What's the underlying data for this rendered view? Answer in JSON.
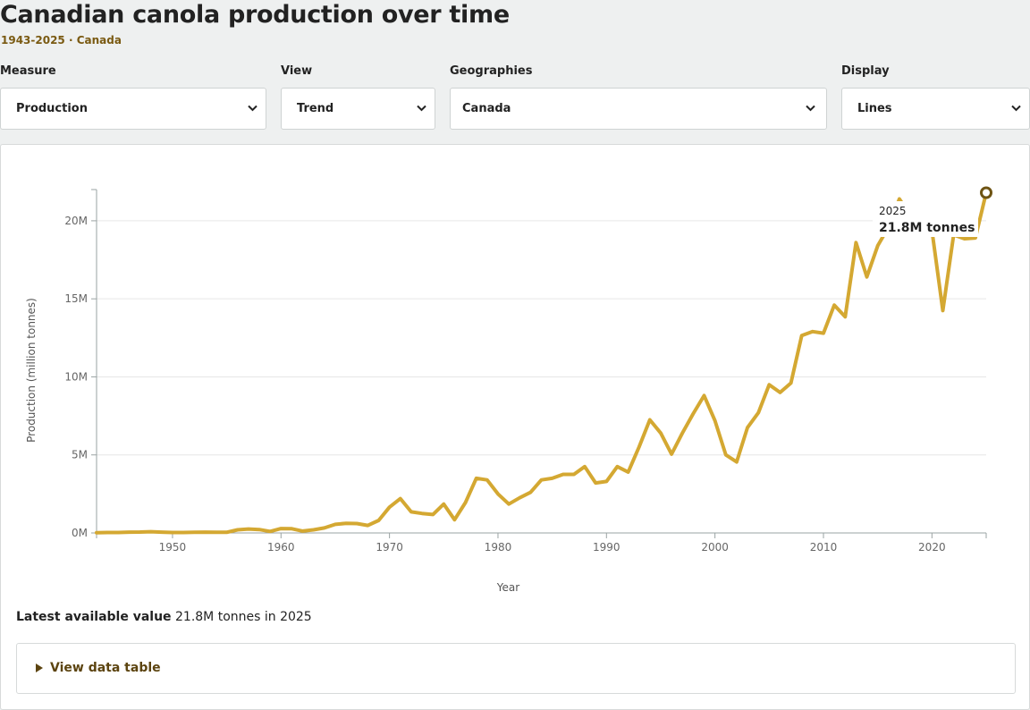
{
  "header": {
    "title": "Canadian canola production over time",
    "subtitle": "1943-2025 · Canada"
  },
  "controls": {
    "measure": {
      "label": "Measure",
      "value": "Production"
    },
    "view": {
      "label": "View",
      "value": "Trend"
    },
    "geographies": {
      "label": "Geographies",
      "value": "Canada"
    },
    "display": {
      "label": "Display",
      "value": "Lines"
    }
  },
  "icons": {
    "select": "chevron-down-icon",
    "details": "triangle-right-icon"
  },
  "colors": {
    "line": "#d4a832",
    "marker": "#6e5413",
    "accent_text": "#7a5a12"
  },
  "tooltip": {
    "year": "2025",
    "value": "21.8M tonnes"
  },
  "latest": {
    "label": "Latest available value",
    "text": "21.8M tonnes in 2025"
  },
  "details": {
    "label": "View data table"
  },
  "chart_data": {
    "type": "line",
    "xlabel": "Year",
    "ylabel": "Production (million tonnes)",
    "xlim": [
      1943,
      2025
    ],
    "ylim": [
      0,
      22
    ],
    "x_ticks": [
      1950,
      1960,
      1970,
      1980,
      1990,
      2000,
      2010,
      2020
    ],
    "y_ticks": [
      0,
      5,
      10,
      15,
      20
    ],
    "y_tick_labels": [
      "0M",
      "5M",
      "10M",
      "15M",
      "20M"
    ],
    "grid": true,
    "series": [
      {
        "x": [
          1943,
          1944,
          1945,
          1946,
          1947,
          1948,
          1949,
          1950,
          1951,
          1952,
          1953,
          1954,
          1955,
          1956,
          1957,
          1958,
          1959,
          1960,
          1961,
          1962,
          1963,
          1964,
          1965,
          1966,
          1967,
          1968,
          1969,
          1970,
          1971,
          1972,
          1973,
          1974,
          1975,
          1976,
          1977,
          1978,
          1979,
          1980,
          1981,
          1982,
          1983,
          1984,
          1985,
          1986,
          1987,
          1988,
          1989,
          1990,
          1991,
          1992,
          1993,
          1994,
          1995,
          1996,
          1997,
          1998,
          1999,
          2000,
          2001,
          2002,
          2003,
          2004,
          2005,
          2006,
          2007,
          2008,
          2009,
          2010,
          2011,
          2012,
          2013,
          2014,
          2015,
          2016,
          2017,
          2018,
          2019,
          2020,
          2021,
          2022,
          2023,
          2024,
          2025
        ],
        "values": [
          0.02,
          0.03,
          0.03,
          0.05,
          0.06,
          0.08,
          0.05,
          0.03,
          0.03,
          0.04,
          0.05,
          0.04,
          0.04,
          0.2,
          0.25,
          0.22,
          0.1,
          0.28,
          0.27,
          0.12,
          0.2,
          0.32,
          0.55,
          0.62,
          0.6,
          0.48,
          0.8,
          1.65,
          2.2,
          1.35,
          1.25,
          1.18,
          1.85,
          0.85,
          1.95,
          3.5,
          3.4,
          2.5,
          1.85,
          2.25,
          2.6,
          3.4,
          3.5,
          3.75,
          3.75,
          4.25,
          3.2,
          3.3,
          4.25,
          3.9,
          5.5,
          7.25,
          6.4,
          5.05,
          6.4,
          7.65,
          8.8,
          7.2,
          5.0,
          4.55,
          6.75,
          7.7,
          9.5,
          9.0,
          9.6,
          12.65,
          12.9,
          12.8,
          14.6,
          13.85,
          18.6,
          16.4,
          18.4,
          19.6,
          21.4,
          20.35,
          19.6,
          19.4,
          14.25,
          19.1,
          18.85,
          18.9,
          21.8
        ]
      }
    ]
  }
}
